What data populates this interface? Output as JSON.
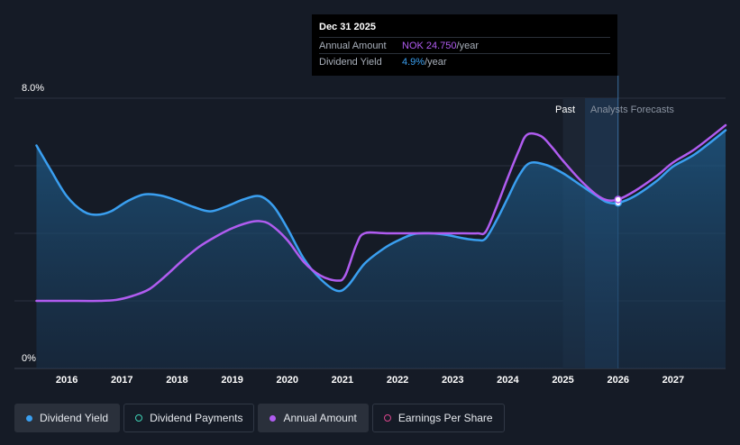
{
  "tooltip": {
    "date": "Dec 31 2025",
    "rows": [
      {
        "label": "Annual Amount",
        "value": "NOK 24.750",
        "unit": "/year",
        "color": "#b05cf0"
      },
      {
        "label": "Dividend Yield",
        "value": "4.9%",
        "unit": "/year",
        "color": "#3a9ff0"
      }
    ]
  },
  "regions": {
    "past_label": "Past",
    "forecast_label": "Analysts Forecasts"
  },
  "legend": [
    {
      "label": "Dividend Yield",
      "color": "#3a9ff0",
      "filled": true,
      "active": true
    },
    {
      "label": "Dividend Payments",
      "color": "#3fd3b6",
      "filled": false,
      "active": false
    },
    {
      "label": "Annual Amount",
      "color": "#b05cf0",
      "filled": true,
      "active": true
    },
    {
      "label": "Earnings Per Share",
      "color": "#d9468c",
      "filled": false,
      "active": false
    }
  ],
  "chart_data": {
    "type": "line",
    "title": "",
    "xlabel": "",
    "ylabel": "",
    "ylim": [
      0,
      8
    ],
    "xlim": [
      2015.05,
      2027.95
    ],
    "y_ticks": [
      {
        "value": 8,
        "label": "8.0%"
      },
      {
        "value": 0,
        "label": "0%"
      }
    ],
    "x_ticks": [
      {
        "value": 2016,
        "label": "2016"
      },
      {
        "value": 2017,
        "label": "2017"
      },
      {
        "value": 2018,
        "label": "2018"
      },
      {
        "value": 2019,
        "label": "2019"
      },
      {
        "value": 2020,
        "label": "2020"
      },
      {
        "value": 2021,
        "label": "2021"
      },
      {
        "value": 2022,
        "label": "2022"
      },
      {
        "value": 2023,
        "label": "2023"
      },
      {
        "value": 2024,
        "label": "2024"
      },
      {
        "value": 2025,
        "label": "2025"
      },
      {
        "value": 2026,
        "label": "2026"
      },
      {
        "value": 2027,
        "label": "2027"
      }
    ],
    "grid": true,
    "forecast_start": 2025.0,
    "highlight_band": [
      2025.4,
      2026.0
    ],
    "marker_x": 2026.0,
    "series": [
      {
        "name": "Dividend Yield",
        "color": "#3a9ff0",
        "fill": true,
        "points": [
          [
            2015.45,
            6.6
          ],
          [
            2015.7,
            5.9
          ],
          [
            2016.0,
            5.1
          ],
          [
            2016.3,
            4.65
          ],
          [
            2016.55,
            4.55
          ],
          [
            2016.8,
            4.65
          ],
          [
            2017.1,
            4.95
          ],
          [
            2017.4,
            5.15
          ],
          [
            2017.7,
            5.12
          ],
          [
            2018.0,
            4.97
          ],
          [
            2018.3,
            4.78
          ],
          [
            2018.6,
            4.65
          ],
          [
            2018.9,
            4.8
          ],
          [
            2019.2,
            5.0
          ],
          [
            2019.5,
            5.1
          ],
          [
            2019.75,
            4.8
          ],
          [
            2020.0,
            4.15
          ],
          [
            2020.3,
            3.25
          ],
          [
            2020.6,
            2.65
          ],
          [
            2020.9,
            2.3
          ],
          [
            2021.1,
            2.45
          ],
          [
            2021.4,
            3.1
          ],
          [
            2021.75,
            3.55
          ],
          [
            2022.0,
            3.78
          ],
          [
            2022.3,
            3.98
          ],
          [
            2022.6,
            4.0
          ],
          [
            2022.9,
            3.95
          ],
          [
            2023.2,
            3.85
          ],
          [
            2023.45,
            3.8
          ],
          [
            2023.6,
            3.85
          ],
          [
            2023.8,
            4.4
          ],
          [
            2024.0,
            5.05
          ],
          [
            2024.2,
            5.7
          ],
          [
            2024.4,
            6.08
          ],
          [
            2024.7,
            6.02
          ],
          [
            2025.0,
            5.78
          ],
          [
            2025.3,
            5.45
          ],
          [
            2025.6,
            5.12
          ],
          [
            2025.8,
            4.92
          ],
          [
            2026.0,
            4.9
          ],
          [
            2026.3,
            5.1
          ],
          [
            2026.7,
            5.55
          ],
          [
            2027.0,
            5.98
          ],
          [
            2027.4,
            6.35
          ],
          [
            2027.95,
            7.05
          ]
        ]
      },
      {
        "name": "Annual Amount",
        "color": "#b05cf0",
        "fill": false,
        "points": [
          [
            2015.45,
            2.0
          ],
          [
            2016.0,
            2.0
          ],
          [
            2016.6,
            2.0
          ],
          [
            2016.9,
            2.03
          ],
          [
            2017.2,
            2.15
          ],
          [
            2017.5,
            2.35
          ],
          [
            2017.8,
            2.75
          ],
          [
            2018.1,
            3.2
          ],
          [
            2018.4,
            3.6
          ],
          [
            2018.7,
            3.9
          ],
          [
            2019.0,
            4.15
          ],
          [
            2019.3,
            4.32
          ],
          [
            2019.5,
            4.36
          ],
          [
            2019.7,
            4.25
          ],
          [
            2020.0,
            3.8
          ],
          [
            2020.3,
            3.15
          ],
          [
            2020.6,
            2.75
          ],
          [
            2020.9,
            2.6
          ],
          [
            2021.05,
            2.75
          ],
          [
            2021.25,
            3.65
          ],
          [
            2021.4,
            4.0
          ],
          [
            2021.8,
            4.0
          ],
          [
            2022.5,
            4.0
          ],
          [
            2023.2,
            4.0
          ],
          [
            2023.45,
            4.0
          ],
          [
            2023.6,
            4.05
          ],
          [
            2023.8,
            4.8
          ],
          [
            2024.0,
            5.65
          ],
          [
            2024.2,
            6.45
          ],
          [
            2024.35,
            6.92
          ],
          [
            2024.6,
            6.88
          ],
          [
            2024.8,
            6.55
          ],
          [
            2025.0,
            6.15
          ],
          [
            2025.3,
            5.6
          ],
          [
            2025.6,
            5.15
          ],
          [
            2025.8,
            4.98
          ],
          [
            2026.0,
            5.0
          ],
          [
            2026.3,
            5.25
          ],
          [
            2026.7,
            5.7
          ],
          [
            2027.0,
            6.1
          ],
          [
            2027.4,
            6.5
          ],
          [
            2027.95,
            7.2
          ]
        ]
      }
    ]
  }
}
